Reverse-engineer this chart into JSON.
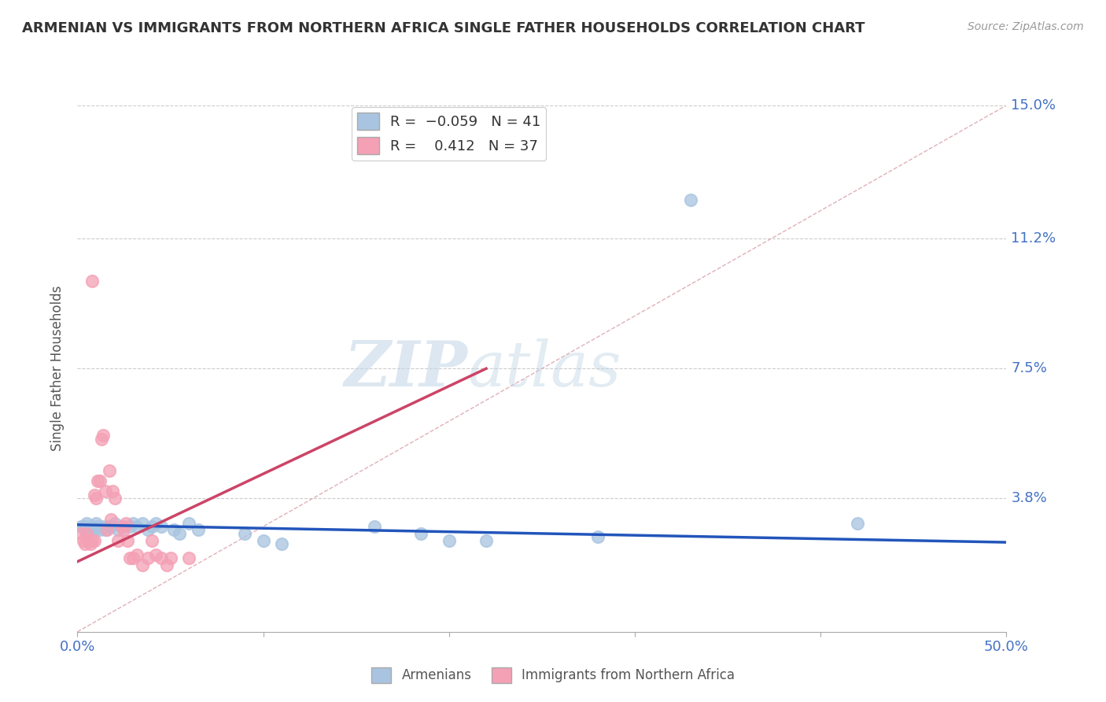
{
  "title": "ARMENIAN VS IMMIGRANTS FROM NORTHERN AFRICA SINGLE FATHER HOUSEHOLDS CORRELATION CHART",
  "source": "Source: ZipAtlas.com",
  "ylabel": "Single Father Households",
  "xlim": [
    0.0,
    0.5
  ],
  "ylim": [
    0.0,
    0.15
  ],
  "yticks": [
    0.038,
    0.075,
    0.112,
    0.15
  ],
  "ytick_labels": [
    "3.8%",
    "7.5%",
    "11.2%",
    "15.0%"
  ],
  "xticks": [
    0.0,
    0.1,
    0.2,
    0.3,
    0.4,
    0.5
  ],
  "xtick_labels": [
    "0.0%",
    "",
    "",
    "",
    "",
    "50.0%"
  ],
  "armenian_color": "#a8c4e0",
  "immigrant_color": "#f4a0b5",
  "armenian_line_color": "#2255bb",
  "immigrant_line_color": "#cc4466",
  "diagonal_color": "#e0b0b8",
  "background_color": "#ffffff",
  "grid_color": "#cccccc",
  "watermark_zip": "ZIP",
  "watermark_atlas": "atlas",
  "armenian_R": -0.059,
  "armenian_N": 41,
  "immigrant_R": 0.412,
  "immigrant_N": 37,
  "armenian_points": [
    [
      0.002,
      0.03
    ],
    [
      0.003,
      0.03
    ],
    [
      0.004,
      0.03
    ],
    [
      0.005,
      0.028
    ],
    [
      0.005,
      0.031
    ],
    [
      0.006,
      0.029
    ],
    [
      0.007,
      0.03
    ],
    [
      0.008,
      0.03
    ],
    [
      0.009,
      0.029
    ],
    [
      0.01,
      0.031
    ],
    [
      0.011,
      0.03
    ],
    [
      0.012,
      0.029
    ],
    [
      0.013,
      0.03
    ],
    [
      0.015,
      0.029
    ],
    [
      0.016,
      0.03
    ],
    [
      0.018,
      0.03
    ],
    [
      0.02,
      0.031
    ],
    [
      0.022,
      0.029
    ],
    [
      0.025,
      0.03
    ],
    [
      0.028,
      0.03
    ],
    [
      0.03,
      0.031
    ],
    [
      0.032,
      0.03
    ],
    [
      0.035,
      0.031
    ],
    [
      0.038,
      0.029
    ],
    [
      0.04,
      0.03
    ],
    [
      0.042,
      0.031
    ],
    [
      0.045,
      0.03
    ],
    [
      0.052,
      0.029
    ],
    [
      0.055,
      0.028
    ],
    [
      0.06,
      0.031
    ],
    [
      0.065,
      0.029
    ],
    [
      0.09,
      0.028
    ],
    [
      0.1,
      0.026
    ],
    [
      0.11,
      0.025
    ],
    [
      0.16,
      0.03
    ],
    [
      0.185,
      0.028
    ],
    [
      0.2,
      0.026
    ],
    [
      0.22,
      0.026
    ],
    [
      0.28,
      0.027
    ],
    [
      0.33,
      0.123
    ],
    [
      0.42,
      0.031
    ]
  ],
  "immigrant_points": [
    [
      0.002,
      0.028
    ],
    [
      0.003,
      0.026
    ],
    [
      0.004,
      0.025
    ],
    [
      0.005,
      0.028
    ],
    [
      0.006,
      0.026
    ],
    [
      0.007,
      0.025
    ],
    [
      0.008,
      0.026
    ],
    [
      0.009,
      0.026
    ],
    [
      0.009,
      0.039
    ],
    [
      0.01,
      0.038
    ],
    [
      0.011,
      0.043
    ],
    [
      0.012,
      0.043
    ],
    [
      0.013,
      0.055
    ],
    [
      0.014,
      0.056
    ],
    [
      0.015,
      0.04
    ],
    [
      0.016,
      0.029
    ],
    [
      0.017,
      0.046
    ],
    [
      0.018,
      0.032
    ],
    [
      0.019,
      0.04
    ],
    [
      0.02,
      0.038
    ],
    [
      0.022,
      0.026
    ],
    [
      0.024,
      0.03
    ],
    [
      0.025,
      0.029
    ],
    [
      0.026,
      0.031
    ],
    [
      0.027,
      0.026
    ],
    [
      0.028,
      0.021
    ],
    [
      0.03,
      0.021
    ],
    [
      0.032,
      0.022
    ],
    [
      0.035,
      0.019
    ],
    [
      0.038,
      0.021
    ],
    [
      0.04,
      0.026
    ],
    [
      0.042,
      0.022
    ],
    [
      0.008,
      0.1
    ],
    [
      0.045,
      0.021
    ],
    [
      0.048,
      0.019
    ],
    [
      0.05,
      0.021
    ],
    [
      0.06,
      0.021
    ]
  ]
}
